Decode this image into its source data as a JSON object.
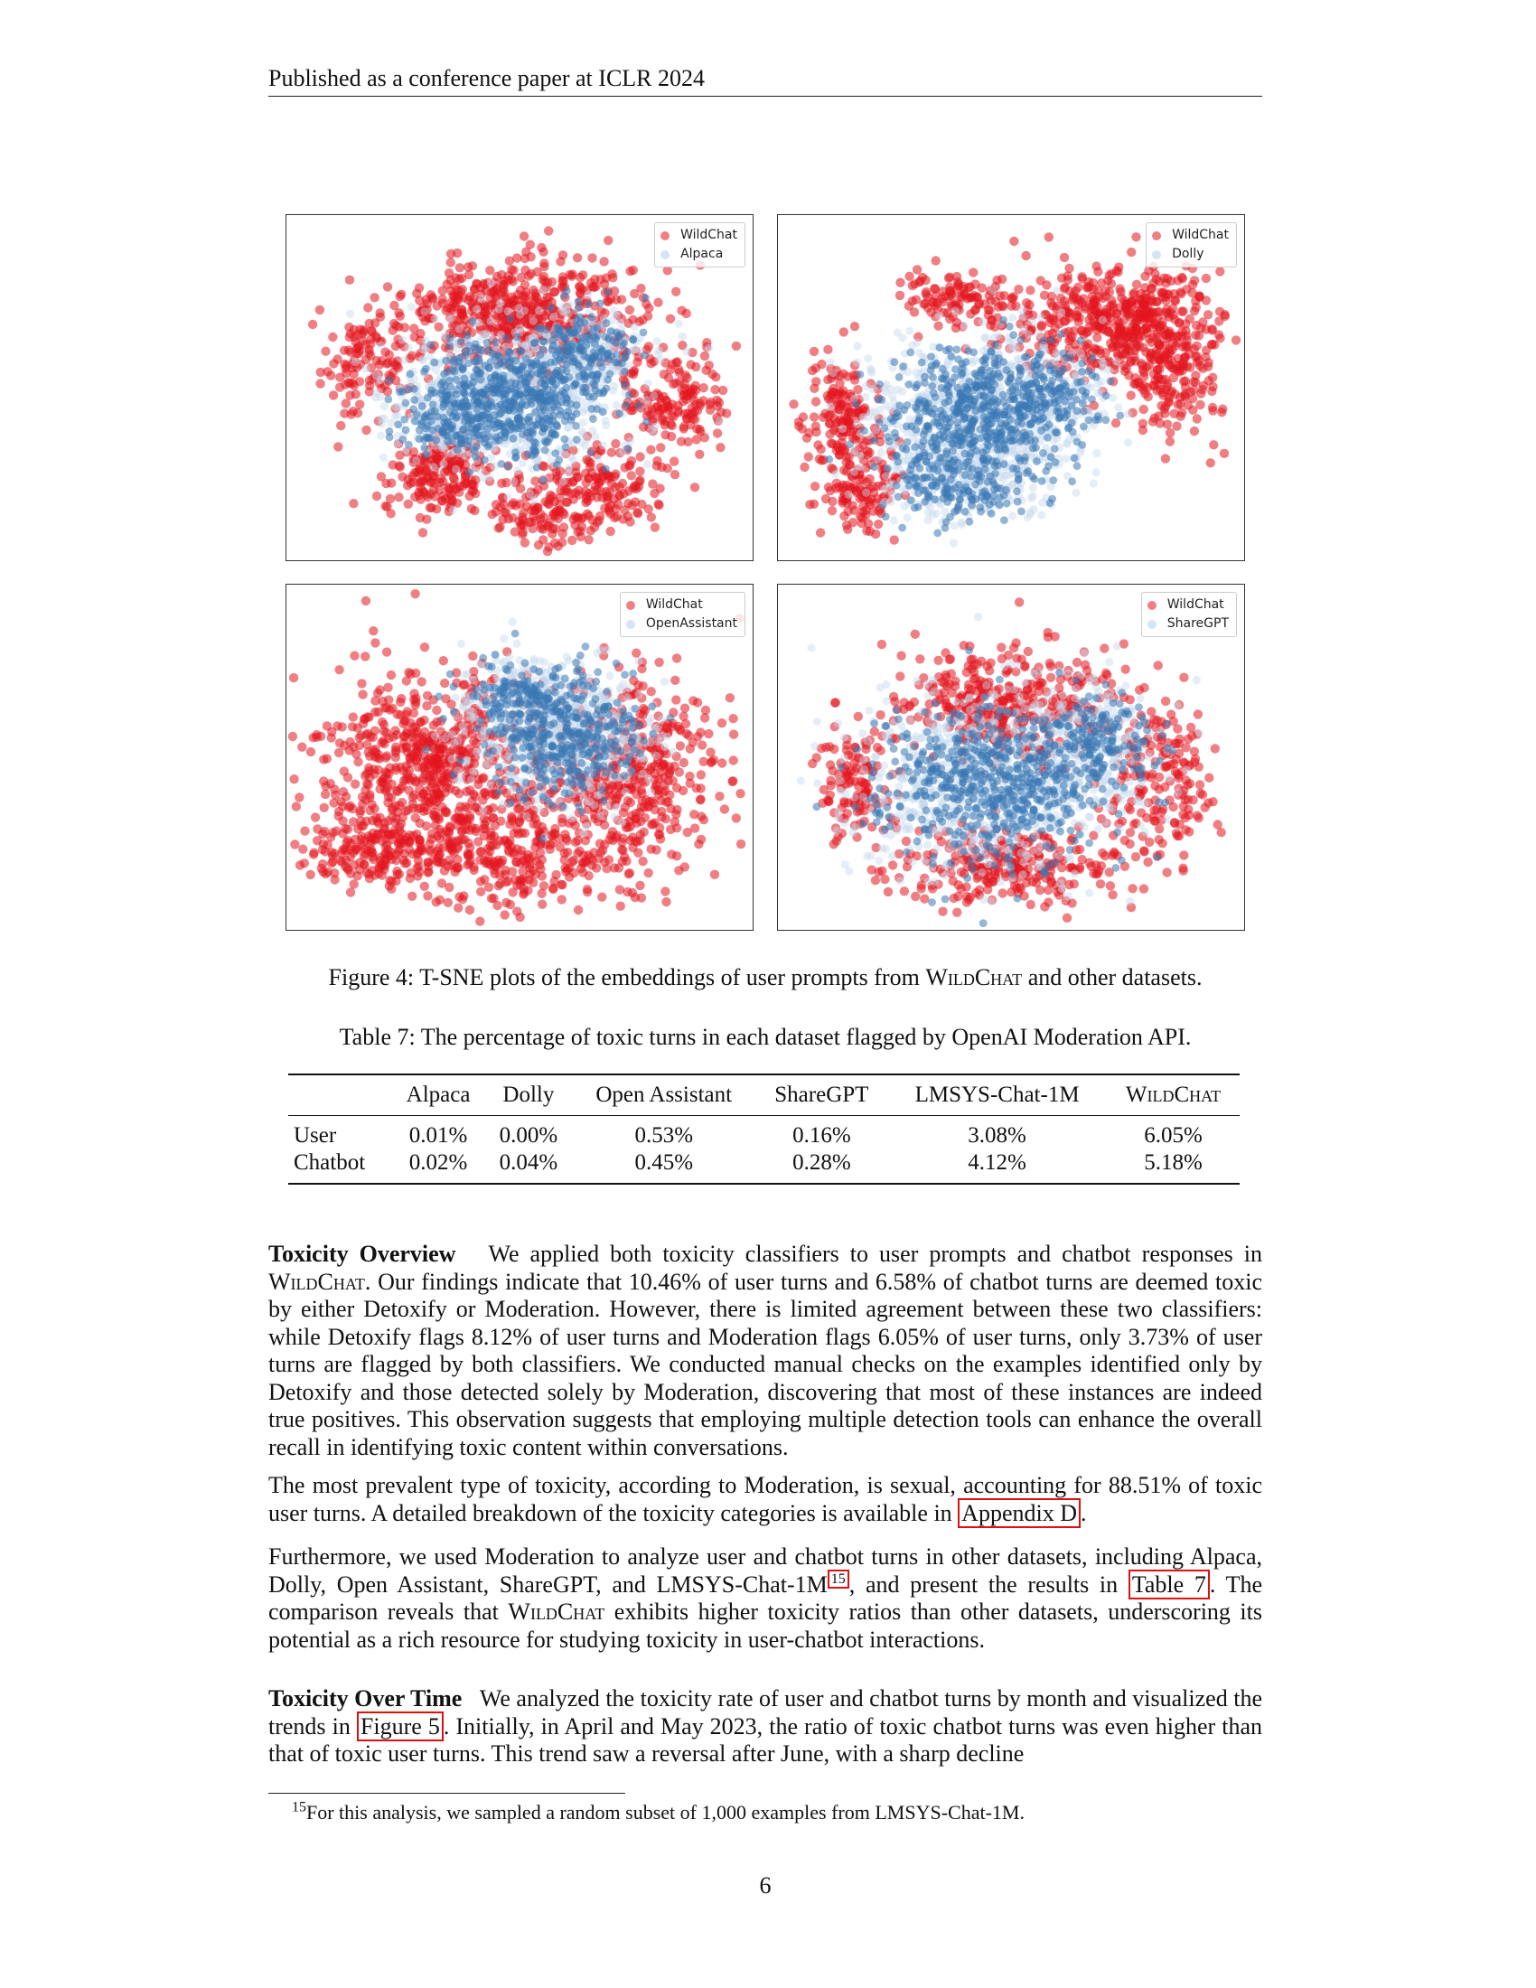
{
  "header": {
    "venue": "Published as a conference paper at ICLR 2024"
  },
  "figure": {
    "colors": {
      "wildchat": "#e4151f",
      "other": "#3a78b5",
      "other_light": "#c5d9ee"
    },
    "panels": [
      {
        "legend": [
          "WildChat",
          "Alpaca"
        ]
      },
      {
        "legend": [
          "WildChat",
          "Dolly"
        ]
      },
      {
        "legend": [
          "WildChat",
          "OpenAssistant"
        ]
      },
      {
        "legend": [
          "WildChat",
          "ShareGPT"
        ]
      }
    ],
    "caption": {
      "prefix": "Figure 4: T-SNE plots of the embeddings of user prompts from ",
      "name": "WildChat",
      "suffix": " and other datasets."
    }
  },
  "table": {
    "caption": "Table 7: The percentage of toxic turns in each dataset flagged by OpenAI Moderation API.",
    "columns": [
      "",
      "Alpaca",
      "Dolly",
      "Open Assistant",
      "ShareGPT",
      "LMSYS-Chat-1M",
      "WildChat"
    ],
    "rows": [
      {
        "label": "User",
        "values": [
          "0.01%",
          "0.00%",
          "0.53%",
          "0.16%",
          "3.08%",
          "6.05%"
        ]
      },
      {
        "label": "Chatbot",
        "values": [
          "0.02%",
          "0.04%",
          "0.45%",
          "0.28%",
          "4.12%",
          "5.18%"
        ]
      }
    ]
  },
  "sections": {
    "overview": {
      "heading": "Toxicity Overview",
      "t1": "We applied both toxicity classifiers to user prompts and chatbot responses in ",
      "name": "WildChat",
      "t2": ". Our findings indicate that 10.46% of user turns and 6.58% of chatbot turns are deemed toxic by either Detoxify or Moderation. However, there is limited agreement between these two classifiers: while Detoxify flags 8.12% of user turns and Moderation flags 6.05% of user turns, only 3.73% of user turns are flagged by both classifiers. We conducted manual checks on the examples identified only by Detoxify and those detected solely by Moderation, discovering that most of these instances are indeed true positives. This observation suggests that employing multiple detection tools can enhance the overall recall in identifying toxic content within conversations."
    },
    "prevalent": {
      "t1": "The most prevalent type of toxicity, according to Moderation, is sexual, accounting for 88.51% of toxic user turns. A detailed breakdown of the toxicity categories is available in ",
      "ref": "Appendix D",
      "t2": "."
    },
    "furthermore": {
      "t1": "Furthermore, we used Moderation to analyze user and chatbot turns in other datasets, including Alpaca, Dolly, Open Assistant, ShareGPT, and LMSYS-Chat-1M",
      "fn": "15",
      "t2": ", and present the results in ",
      "ref": "Table 7",
      "t3": ". The comparison reveals that ",
      "name": "WildChat",
      "t4": " exhibits higher toxicity ratios than other datasets, underscoring its potential as a rich resource for studying toxicity in user-chatbot interactions."
    },
    "overtime": {
      "heading": "Toxicity Over Time",
      "t1": "We analyzed the toxicity rate of user and chatbot turns by month and visualized the trends in ",
      "ref": "Figure 5",
      "t2": ". Initially, in April and May 2023, the ratio of toxic chatbot turns was even higher than that of toxic user turns. This trend saw a reversal after June, with a sharp decline"
    }
  },
  "footnote": {
    "mark": "15",
    "text": "For this analysis, we sampled a random subset of 1,000 examples from LMSYS-Chat-1M."
  },
  "page_number": "6"
}
